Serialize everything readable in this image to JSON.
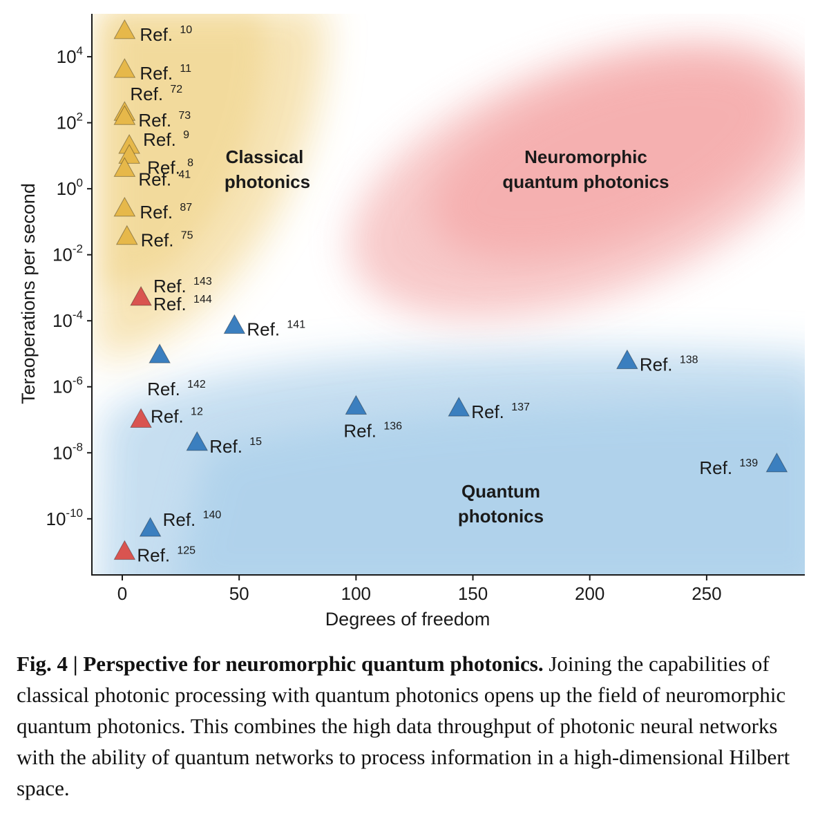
{
  "chart_data": {
    "type": "scatter",
    "xlabel": "Degrees of freedom",
    "ylabel": "Teraoperations per second",
    "y_scale": "log",
    "xlim": [
      -13,
      292
    ],
    "ylim_log10": [
      -11.7,
      5.3
    ],
    "x_ticks": [
      0,
      50,
      100,
      150,
      200,
      250
    ],
    "y_ticks": [
      {
        "exp": 4,
        "label": "10",
        "sup": "4"
      },
      {
        "exp": 2,
        "label": "10",
        "sup": "2"
      },
      {
        "exp": 0,
        "label": "10",
        "sup": "0"
      },
      {
        "exp": -2,
        "label": "10",
        "sup": "-2"
      },
      {
        "exp": -4,
        "label": "10",
        "sup": "-4"
      },
      {
        "exp": -6,
        "label": "10",
        "sup": "-6"
      },
      {
        "exp": -8,
        "label": "10",
        "sup": "-8"
      },
      {
        "exp": -10,
        "label": "10",
        "sup": "-10"
      }
    ],
    "regions": [
      {
        "name": "Classical photonics",
        "lines": [
          "Classical",
          "photonics"
        ],
        "color": "#f0d48a"
      },
      {
        "name": "Neuromorphic quantum photonics",
        "lines": [
          "Neuromorphic",
          "quantum photonics"
        ],
        "color": "#f4a0a0"
      },
      {
        "name": "Quantum photonics",
        "lines": [
          "Quantum",
          "photonics"
        ],
        "color": "#a9cfea"
      }
    ],
    "marker_colors": {
      "classical": "#e6b84a",
      "neuromorphic": "#d95450",
      "quantum": "#3b7fbf"
    },
    "points": [
      {
        "x": 1,
        "y": 60000,
        "group": "classical",
        "label": "Ref.",
        "ref": "10"
      },
      {
        "x": 1,
        "y": 4000,
        "group": "classical",
        "label": "Ref.",
        "ref": "11"
      },
      {
        "x": 1,
        "y": 200,
        "group": "classical",
        "label": "Ref.",
        "ref": "72"
      },
      {
        "x": 1,
        "y": 150,
        "group": "classical",
        "label": "Ref.",
        "ref": "73"
      },
      {
        "x": 3,
        "y": 20,
        "group": "classical",
        "label": "Ref.",
        "ref": "9"
      },
      {
        "x": 3,
        "y": 10,
        "group": "classical",
        "label": "Ref.",
        "ref": "8"
      },
      {
        "x": 1,
        "y": 4,
        "group": "classical",
        "label": "Ref.",
        "ref": "41"
      },
      {
        "x": 1,
        "y": 0.25,
        "group": "classical",
        "label": "Ref.",
        "ref": "87"
      },
      {
        "x": 2,
        "y": 0.035,
        "group": "classical",
        "label": "Ref.",
        "ref": "75"
      },
      {
        "x": 8,
        "y": 0.0005,
        "group": "neuromorphic",
        "label": "Ref.",
        "ref": "143"
      },
      {
        "x": 8,
        "y": 0.0005,
        "group": "neuromorphic",
        "label": "Ref.",
        "ref": "144"
      },
      {
        "x": 48,
        "y": 7e-05,
        "group": "quantum",
        "label": "Ref.",
        "ref": "141"
      },
      {
        "x": 16,
        "y": 9e-06,
        "group": "quantum",
        "label": "Ref.",
        "ref": "142"
      },
      {
        "x": 216,
        "y": 6e-06,
        "group": "quantum",
        "label": "Ref.",
        "ref": "138"
      },
      {
        "x": 8,
        "y": 1e-07,
        "group": "neuromorphic",
        "label": "Ref.",
        "ref": "12"
      },
      {
        "x": 100,
        "y": 2.5e-07,
        "group": "quantum",
        "label": "Ref.",
        "ref": "136"
      },
      {
        "x": 144,
        "y": 2.2e-07,
        "group": "quantum",
        "label": "Ref.",
        "ref": "137"
      },
      {
        "x": 32,
        "y": 2e-08,
        "group": "quantum",
        "label": "Ref.",
        "ref": "15"
      },
      {
        "x": 280,
        "y": 4.5e-09,
        "group": "quantum",
        "label": "Ref.",
        "ref": "139"
      },
      {
        "x": 12,
        "y": 5e-11,
        "group": "quantum",
        "label": "Ref.",
        "ref": "140"
      },
      {
        "x": 1,
        "y": 1e-11,
        "group": "neuromorphic",
        "label": "Ref.",
        "ref": "125"
      }
    ]
  },
  "caption": {
    "label": "Fig. 4 | Perspective for neuromorphic quantum photonics.",
    "text": " Joining the capabilities of classical photonic processing with quantum photonics opens up the field of neuromorphic quantum photonics. This combines the high data throughput of photonic neural networks with the ability of quantum networks to process information in a high-dimensional Hilbert space."
  }
}
